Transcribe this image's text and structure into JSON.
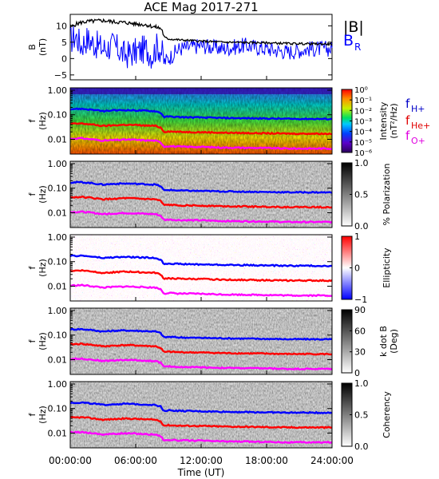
{
  "title": "ACE Mag 2017-271",
  "time_axis": {
    "label": "Time (UT)",
    "ticks": [
      "00:00:00",
      "06:00:00",
      "12:00:00",
      "18:00:00",
      "24:00:00"
    ],
    "range_hours": [
      0,
      24
    ]
  },
  "colors": {
    "B_total": "#000000",
    "B_R": "#0000ff",
    "f_H": "#0000ff",
    "f_He": "#ff0000",
    "f_O": "#ff00ff"
  },
  "chart_data": [
    {
      "type": "line",
      "panel": "B",
      "ylabel": [
        "B",
        "(nT)"
      ],
      "ylim": [
        -6.5,
        13.5
      ],
      "yticks": [
        -5,
        0,
        5,
        10
      ],
      "series": [
        {
          "name": "|B|",
          "x_hours": [
            0,
            0.5,
            1,
            1.5,
            2,
            3,
            4,
            5,
            6,
            7,
            7.5,
            8,
            8.4,
            8.6,
            9,
            10,
            12,
            14,
            16,
            18,
            20,
            22,
            24
          ],
          "values": [
            9.5,
            10.5,
            11,
            11.3,
            11.4,
            11.6,
            11.2,
            11.0,
            10.6,
            10.3,
            9.8,
            9.5,
            9.0,
            6.5,
            6.0,
            5.7,
            5.3,
            5.0,
            4.9,
            4.8,
            4.6,
            4.5,
            4.4
          ]
        },
        {
          "name": "B_R",
          "x_hours": [
            0,
            0.5,
            1,
            1.5,
            2,
            3,
            4,
            5,
            6,
            7,
            7.5,
            8,
            8.4,
            8.6,
            9,
            10,
            12,
            14,
            16,
            18,
            20,
            22,
            24
          ],
          "values": [
            5.5,
            7,
            4,
            6,
            5,
            3,
            4,
            1,
            2,
            3,
            1,
            4,
            2,
            -1,
            0,
            3,
            4,
            3,
            4,
            3,
            2,
            3,
            3
          ]
        }
      ]
    },
    {
      "type": "heatmap",
      "panel": "Intensity",
      "ylabel": [
        "f",
        "(Hz)"
      ],
      "colorbar_label": [
        "Intensity",
        "(nT²/Hz)"
      ],
      "colorbar_ticks": [
        "10⁰",
        "10⁻¹",
        "10⁻²",
        "10⁻³",
        "10⁻⁴",
        "10⁻⁵",
        "10⁻⁶"
      ]
    },
    {
      "type": "heatmap",
      "panel": "Polarization",
      "ylabel": [
        "f",
        "(Hz)"
      ],
      "colorbar_label": [
        "% Polarization"
      ],
      "colorbar_ticks": [
        "1.0",
        "0.5",
        "0.0"
      ]
    },
    {
      "type": "heatmap",
      "panel": "Ellipticity",
      "ylabel": [
        "f",
        "(Hz)"
      ],
      "colorbar_label": [
        "Ellipticity"
      ],
      "colorbar_ticks": [
        "1",
        "0",
        "−1"
      ]
    },
    {
      "type": "heatmap",
      "panel": "k dot B",
      "ylabel": [
        "f",
        "(Hz)"
      ],
      "colorbar_label": [
        "k dot B",
        "(Deg)"
      ],
      "colorbar_ticks": [
        "90",
        "60",
        "30",
        "0"
      ]
    },
    {
      "type": "heatmap",
      "panel": "Coherency",
      "ylabel": [
        "f",
        "(Hz)"
      ],
      "colorbar_label": [
        "Coherency"
      ],
      "colorbar_ticks": [
        "1.0",
        "0.5",
        "0.0"
      ]
    }
  ],
  "freq_axis": {
    "scale": "log",
    "ylim": [
      0.0025,
      1.25
    ],
    "ticks": [
      "1.00",
      "0.10",
      "0.01"
    ],
    "tick_values": [
      1.0,
      0.1,
      0.01
    ]
  },
  "gyrofrequency_lines": {
    "x_hours": [
      0,
      1,
      2,
      3,
      4,
      5,
      6,
      7,
      7.8,
      8.3,
      8.6,
      9,
      10,
      12,
      14,
      16,
      18,
      20,
      22,
      24
    ],
    "f_H_plus": [
      0.17,
      0.175,
      0.16,
      0.14,
      0.15,
      0.155,
      0.15,
      0.145,
      0.14,
      0.12,
      0.08,
      0.085,
      0.08,
      0.077,
      0.074,
      0.072,
      0.07,
      0.068,
      0.068,
      0.067
    ],
    "f_He_plus": [
      0.042,
      0.044,
      0.04,
      0.035,
      0.037,
      0.039,
      0.038,
      0.036,
      0.035,
      0.03,
      0.02,
      0.021,
      0.02,
      0.0195,
      0.0185,
      0.018,
      0.0175,
      0.017,
      0.017,
      0.0168
    ],
    "f_O_plus": [
      0.0105,
      0.011,
      0.01,
      0.0088,
      0.0093,
      0.0097,
      0.0095,
      0.009,
      0.0088,
      0.0075,
      0.005,
      0.0053,
      0.005,
      0.0049,
      0.0046,
      0.0045,
      0.0044,
      0.0042,
      0.0042,
      0.0042
    ]
  },
  "legends": {
    "B_panel": [
      "|B|",
      "B",
      "R"
    ],
    "freq_lines": [
      {
        "base": "f",
        "sub": "H+"
      },
      {
        "base": "f",
        "sub": "He+"
      },
      {
        "base": "f",
        "sub": "O+"
      }
    ]
  }
}
